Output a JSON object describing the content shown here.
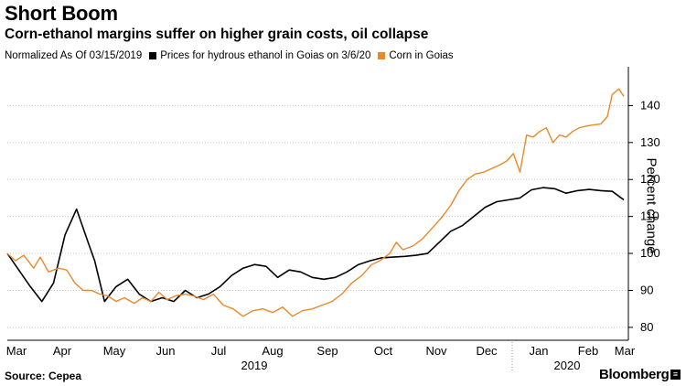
{
  "header": {
    "title": "Short Boom",
    "subtitle": "Corn-ethanol margins suffer on higher grain costs, oil collapse"
  },
  "legend": {
    "note": "Normalized As Of 03/15/2019",
    "items": [
      {
        "label": "Prices for hydrous ethanol in Goias on 3/6/20",
        "color": "#000000"
      },
      {
        "label": "Corn in Goias",
        "color": "#e8892a"
      }
    ]
  },
  "footer": {
    "source": "Source: Cepea",
    "brand": "Bloomberg",
    "brand_mark": "≡"
  },
  "chart_data": {
    "type": "line",
    "ylabel": "Percent change",
    "ylim": [
      77,
      150
    ],
    "y_ticks": [
      80,
      90,
      100,
      110,
      120,
      130,
      140
    ],
    "x_month_labels": [
      "Mar",
      "Apr",
      "May",
      "Jun",
      "Jul",
      "Aug",
      "Sep",
      "Oct",
      "Nov",
      "Dec",
      "Jan",
      "Feb",
      "Mar"
    ],
    "x_year_labels": [
      "2019",
      "2020"
    ],
    "x_start": "2019-03-15",
    "x_end": "2020-03-10",
    "series": [
      {
        "name": "Prices for hydrous ethanol in Goias on 3/6/20",
        "color": "#000000",
        "points": [
          [
            "2019-03-15",
            100
          ],
          [
            "2019-03-29",
            91
          ],
          [
            "2019-04-05",
            87
          ],
          [
            "2019-04-12",
            92
          ],
          [
            "2019-04-19",
            105
          ],
          [
            "2019-04-26",
            112
          ],
          [
            "2019-05-03",
            103
          ],
          [
            "2019-05-07",
            98
          ],
          [
            "2019-05-13",
            87
          ],
          [
            "2019-05-20",
            91
          ],
          [
            "2019-05-27",
            93
          ],
          [
            "2019-06-03",
            89
          ],
          [
            "2019-06-10",
            87
          ],
          [
            "2019-06-17",
            88
          ],
          [
            "2019-06-24",
            87
          ],
          [
            "2019-07-01",
            90
          ],
          [
            "2019-07-08",
            88
          ],
          [
            "2019-07-15",
            89
          ],
          [
            "2019-07-22",
            91
          ],
          [
            "2019-07-29",
            94
          ],
          [
            "2019-08-05",
            96
          ],
          [
            "2019-08-12",
            97
          ],
          [
            "2019-08-19",
            96.5
          ],
          [
            "2019-08-26",
            93.5
          ],
          [
            "2019-09-02",
            95.5
          ],
          [
            "2019-09-09",
            95
          ],
          [
            "2019-09-16",
            93.5
          ],
          [
            "2019-09-23",
            93
          ],
          [
            "2019-09-30",
            93.5
          ],
          [
            "2019-10-07",
            95
          ],
          [
            "2019-10-14",
            97
          ],
          [
            "2019-10-21",
            98
          ],
          [
            "2019-10-28",
            98.8
          ],
          [
            "2019-11-04",
            99
          ],
          [
            "2019-11-11",
            99.2
          ],
          [
            "2019-11-18",
            99.5
          ],
          [
            "2019-11-25",
            100
          ],
          [
            "2019-12-02",
            103
          ],
          [
            "2019-12-09",
            106
          ],
          [
            "2019-12-16",
            107.5
          ],
          [
            "2019-12-23",
            110
          ],
          [
            "2019-12-30",
            112.5
          ],
          [
            "2020-01-06",
            114
          ],
          [
            "2020-01-13",
            114.5
          ],
          [
            "2020-01-20",
            115
          ],
          [
            "2020-01-27",
            117.2
          ],
          [
            "2020-02-03",
            117.8
          ],
          [
            "2020-02-10",
            117.5
          ],
          [
            "2020-02-17",
            116.3
          ],
          [
            "2020-02-24",
            117
          ],
          [
            "2020-03-02",
            117.3
          ],
          [
            "2020-03-09",
            117
          ],
          [
            "2020-03-16",
            116.8
          ],
          [
            "2020-03-23",
            114.5
          ]
        ]
      },
      {
        "name": "Corn in Goias",
        "color": "#e8892a",
        "points": [
          [
            "2019-03-15",
            100
          ],
          [
            "2019-03-20",
            98
          ],
          [
            "2019-03-25",
            99.5
          ],
          [
            "2019-03-31",
            96
          ],
          [
            "2019-04-04",
            99
          ],
          [
            "2019-04-09",
            95
          ],
          [
            "2019-04-15",
            96
          ],
          [
            "2019-04-20",
            95.5
          ],
          [
            "2019-04-25",
            92
          ],
          [
            "2019-04-30",
            90
          ],
          [
            "2019-05-05",
            90
          ],
          [
            "2019-05-10",
            89
          ],
          [
            "2019-05-15",
            88.5
          ],
          [
            "2019-05-20",
            87
          ],
          [
            "2019-05-25",
            88
          ],
          [
            "2019-05-31",
            86.5
          ],
          [
            "2019-06-05",
            88
          ],
          [
            "2019-06-10",
            87
          ],
          [
            "2019-06-15",
            89.5
          ],
          [
            "2019-06-20",
            87.5
          ],
          [
            "2019-06-25",
            88.5
          ],
          [
            "2019-07-01",
            89
          ],
          [
            "2019-07-06",
            88.5
          ],
          [
            "2019-07-12",
            87.5
          ],
          [
            "2019-07-18",
            89
          ],
          [
            "2019-07-24",
            86
          ],
          [
            "2019-07-30",
            85
          ],
          [
            "2019-08-05",
            83
          ],
          [
            "2019-08-11",
            84.5
          ],
          [
            "2019-08-17",
            85
          ],
          [
            "2019-08-23",
            84
          ],
          [
            "2019-08-29",
            85.5
          ],
          [
            "2019-09-04",
            83
          ],
          [
            "2019-09-10",
            84.5
          ],
          [
            "2019-09-16",
            85
          ],
          [
            "2019-09-22",
            86
          ],
          [
            "2019-09-28",
            87
          ],
          [
            "2019-10-04",
            89
          ],
          [
            "2019-10-10",
            92
          ],
          [
            "2019-10-16",
            94
          ],
          [
            "2019-10-22",
            97
          ],
          [
            "2019-10-27",
            98
          ],
          [
            "2019-11-02",
            100
          ],
          [
            "2019-11-06",
            103
          ],
          [
            "2019-11-10",
            101
          ],
          [
            "2019-11-16",
            102
          ],
          [
            "2019-11-22",
            104
          ],
          [
            "2019-11-28",
            107
          ],
          [
            "2019-12-04",
            110
          ],
          [
            "2019-12-09",
            113
          ],
          [
            "2019-12-14",
            117
          ],
          [
            "2019-12-19",
            120
          ],
          [
            "2019-12-24",
            121.5
          ],
          [
            "2019-12-29",
            122
          ],
          [
            "2020-01-03",
            123
          ],
          [
            "2020-01-08",
            124
          ],
          [
            "2020-01-12",
            125
          ],
          [
            "2020-01-16",
            127
          ],
          [
            "2020-01-20",
            122
          ],
          [
            "2020-01-24",
            132
          ],
          [
            "2020-01-28",
            131.5
          ],
          [
            "2020-02-01",
            133
          ],
          [
            "2020-02-05",
            134
          ],
          [
            "2020-02-09",
            130
          ],
          [
            "2020-02-13",
            132
          ],
          [
            "2020-02-17",
            131.5
          ],
          [
            "2020-02-21",
            133
          ],
          [
            "2020-02-25",
            134
          ],
          [
            "2020-03-01",
            134.5
          ],
          [
            "2020-03-05",
            134.8
          ],
          [
            "2020-03-09",
            135
          ],
          [
            "2020-03-13",
            137
          ],
          [
            "2020-03-16",
            143
          ],
          [
            "2020-03-20",
            144.5
          ],
          [
            "2020-03-23",
            142.5
          ]
        ]
      }
    ]
  }
}
